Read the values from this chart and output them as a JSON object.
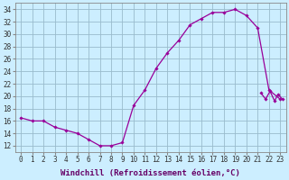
{
  "hours": [
    0,
    1,
    2,
    3,
    4,
    5,
    6,
    7,
    8,
    9,
    10,
    11,
    12,
    13,
    14,
    15,
    16,
    17,
    18,
    19,
    20,
    21,
    22,
    23
  ],
  "windchill": [
    16.5,
    16.0,
    16.0,
    15.0,
    14.5,
    14.0,
    13.0,
    12.0,
    12.0,
    12.5,
    18.5,
    21.0,
    24.5,
    27.0,
    29.0,
    31.5,
    32.5,
    33.5,
    33.5,
    34.0,
    33.0,
    31.0,
    21.0,
    19.5
  ],
  "line_color": "#990099",
  "marker": "D",
  "marker_size": 1.8,
  "bg_color": "#cceeff",
  "grid_color": "#99bbcc",
  "xlabel": "Windchill (Refroidissement éolien,°C)",
  "xlabel_fontsize": 6.5,
  "tick_fontsize": 5.5,
  "ylim": [
    11,
    35
  ],
  "yticks": [
    12,
    14,
    16,
    18,
    20,
    22,
    24,
    26,
    28,
    30,
    32,
    34
  ],
  "xlim": [
    -0.5,
    23.5
  ],
  "extra_x": [
    21.3,
    21.7,
    22.1,
    22.5,
    22.8,
    23.2
  ],
  "extra_y": [
    20.5,
    19.5,
    20.8,
    19.2,
    20.3,
    19.5
  ]
}
